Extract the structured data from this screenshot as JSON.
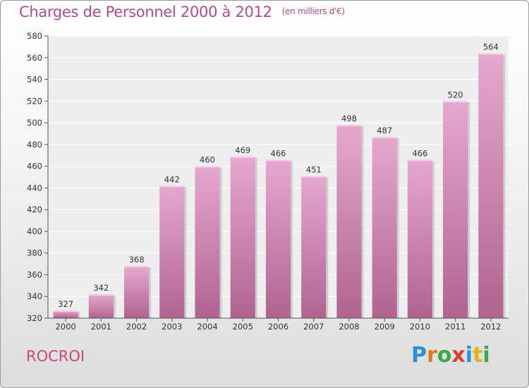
{
  "header": {
    "title": "Charges de Personnel 2000 à 2012",
    "subtitle": "(en milliers d'€)"
  },
  "footer": {
    "place": "ROCROI",
    "logo": "Proxiti"
  },
  "colors": {
    "title": "#b24b8b",
    "place": "#cc4a7a",
    "bar_top": "#e6a8cf",
    "bar_bottom": "#b0648f"
  },
  "chart_data": {
    "type": "bar",
    "title": "Charges de Personnel 2000 à 2012",
    "subtitle": "(en milliers d'€)",
    "categories": [
      "2000",
      "2001",
      "2002",
      "2003",
      "2004",
      "2005",
      "2006",
      "2007",
      "2008",
      "2009",
      "2010",
      "2011",
      "2012"
    ],
    "values": [
      327,
      342,
      368,
      442,
      460,
      469,
      466,
      451,
      498,
      487,
      466,
      520,
      564
    ],
    "ylim": [
      320,
      580
    ],
    "yticks": [
      320,
      340,
      360,
      380,
      400,
      420,
      440,
      460,
      480,
      500,
      520,
      540,
      560,
      580
    ],
    "grid": true,
    "data_labels": true
  }
}
